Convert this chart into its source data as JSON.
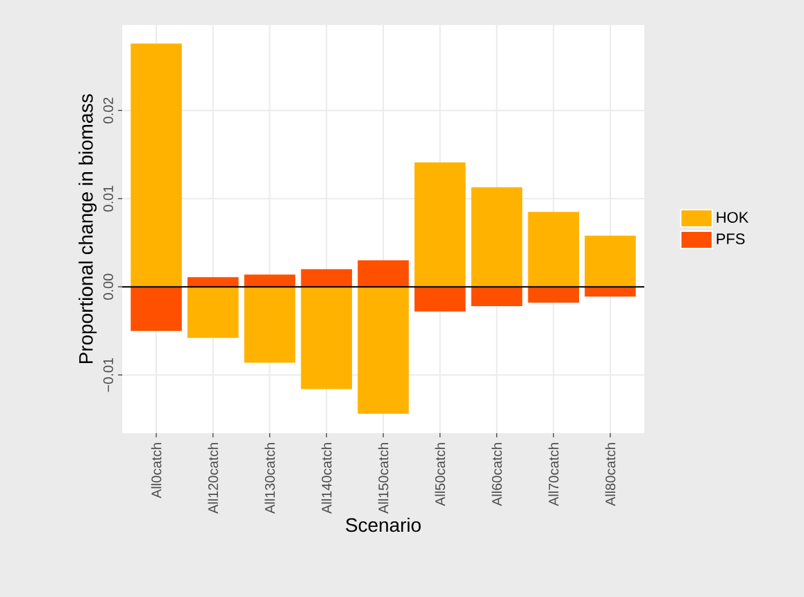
{
  "chart_data": {
    "type": "bar",
    "xlabel": "Scenario",
    "ylabel": "Proportional change in biomass",
    "categories": [
      "All0catch",
      "All120catch",
      "All130catch",
      "All140catch",
      "All150catch",
      "All50catch",
      "All60catch",
      "All70catch",
      "All80catch"
    ],
    "series": [
      {
        "name": "HOK",
        "color": "#ffb300",
        "values": [
          0.0276,
          -0.0058,
          -0.0086,
          -0.0116,
          -0.0144,
          0.0141,
          0.0113,
          0.0085,
          0.0058
        ]
      },
      {
        "name": "PFS",
        "color": "#ff5000",
        "values": [
          -0.005,
          0.0011,
          0.0014,
          0.002,
          0.003,
          -0.0028,
          -0.0022,
          -0.0018,
          -0.0011
        ]
      }
    ],
    "stacked": true,
    "ylim": [
      -0.0166,
      0.0297
    ],
    "yticks": [
      {
        "value": -0.01,
        "label": "−0.01"
      },
      {
        "value": 0,
        "label": "0.00"
      },
      0.01,
      0.02
    ],
    "ref_lines": [
      {
        "axis": "y",
        "value": 0,
        "color": "#000000"
      }
    ],
    "grid": true,
    "legend": "right"
  }
}
